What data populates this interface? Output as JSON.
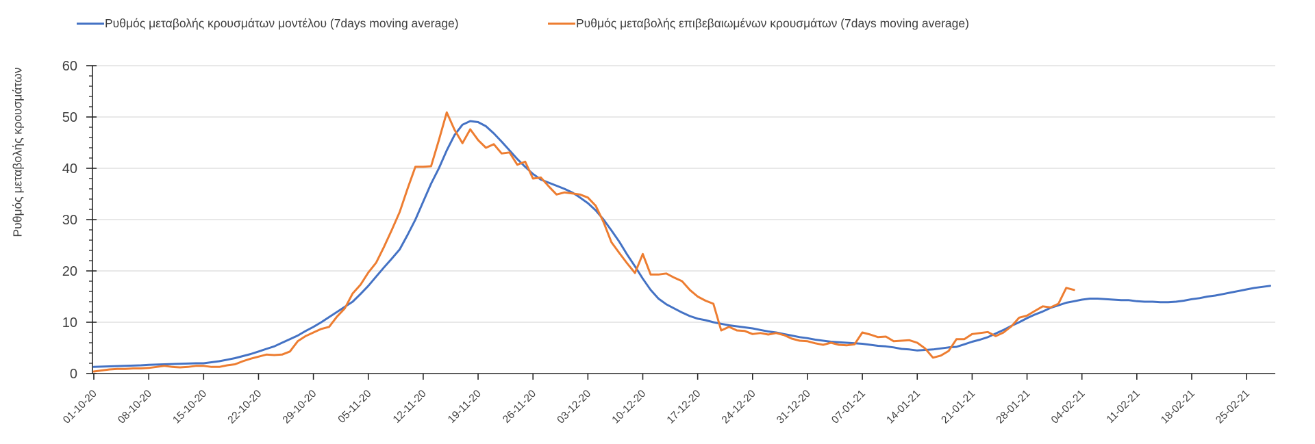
{
  "legend": {
    "items": [
      {
        "label": "Ρυθμός μεταβολής κρουσμάτων μοντέλου (7days moving average)",
        "color": "#4472C4"
      },
      {
        "label": "Ρυθμός μεταβολής επιβεβαιωμένων κρουσμάτων (7days moving average)",
        "color": "#ED7D31"
      }
    ]
  },
  "colors": {
    "series_model": "#4472C4",
    "series_confirmed": "#ED7D31",
    "gridline": "#D9D9D9",
    "axis": "#262626",
    "tick_label": "#404040"
  },
  "chart_data": {
    "type": "line",
    "title": "",
    "xlabel": "",
    "ylabel": "Ρυθμός μεταβολής κρουσμάτων",
    "ylim": [
      0,
      60
    ],
    "y_ticks": [
      0,
      10,
      20,
      30,
      40,
      50,
      60
    ],
    "y_minor_tick_step": 2,
    "grid": "horizontal",
    "legend_position": "top",
    "x_tick_labels": [
      "01-10-20",
      "08-10-20",
      "15-10-20",
      "22-10-20",
      "29-10-20",
      "05-11-20",
      "12-11-20",
      "19-11-20",
      "26-11-20",
      "03-12-20",
      "10-12-20",
      "17-12-20",
      "24-12-20",
      "31-12-20",
      "07-01-21",
      "14-01-21",
      "21-01-21",
      "28-01-21",
      "04-02-21",
      "11-02-21",
      "18-02-21",
      "25-02-21"
    ],
    "x_tick_interval_days": 7,
    "x_start_date": "01-10-20",
    "series": [
      {
        "name": "Ρυθμός μεταβολής κρουσμάτων μοντέλου (7days moving average)",
        "color": "#4472C4",
        "step_days": 1,
        "values": [
          1.3,
          1.35,
          1.4,
          1.45,
          1.5,
          1.55,
          1.6,
          1.7,
          1.75,
          1.8,
          1.85,
          1.9,
          1.95,
          2.0,
          2.0,
          2.2,
          2.4,
          2.7,
          3.0,
          3.4,
          3.8,
          4.3,
          4.8,
          5.3,
          6.0,
          6.7,
          7.4,
          8.3,
          9.1,
          10.0,
          11.0,
          12.0,
          13.0,
          14.0,
          15.5,
          17.1,
          18.9,
          20.7,
          22.4,
          24.2,
          27.0,
          30.0,
          33.5,
          37.0,
          40.0,
          43.5,
          46.5,
          48.5,
          49.2,
          49.0,
          48.2,
          46.8,
          45.2,
          43.5,
          41.8,
          40.3,
          38.9,
          37.8,
          37.2,
          36.6,
          36.0,
          35.3,
          34.3,
          33.2,
          31.8,
          30.0,
          27.9,
          25.7,
          23.2,
          20.9,
          18.5,
          16.3,
          14.6,
          13.5,
          12.7,
          11.9,
          11.2,
          10.7,
          10.4,
          10.0,
          9.7,
          9.4,
          9.2,
          9.0,
          8.8,
          8.5,
          8.2,
          8.0,
          7.7,
          7.4,
          7.1,
          6.9,
          6.6,
          6.4,
          6.2,
          6.1,
          6.0,
          5.9,
          5.8,
          5.6,
          5.4,
          5.3,
          5.1,
          4.8,
          4.7,
          4.5,
          4.6,
          4.7,
          4.9,
          5.1,
          5.2,
          5.7,
          6.2,
          6.6,
          7.1,
          7.8,
          8.5,
          9.3,
          10.0,
          10.8,
          11.5,
          12.1,
          12.8,
          13.3,
          13.8,
          14.1,
          14.4,
          14.6,
          14.6,
          14.5,
          14.4,
          14.3,
          14.3,
          14.1,
          14.0,
          14.0,
          13.9,
          13.9,
          14.0,
          14.2,
          14.5,
          14.7,
          15.0,
          15.2,
          15.5,
          15.8,
          16.1,
          16.4,
          16.7,
          16.9,
          17.1
        ]
      },
      {
        "name": "Ρυθμός μεταβολής επιβεβαιωμένων κρουσμάτων (7days moving average)",
        "color": "#ED7D31",
        "step_days": 1,
        "values": [
          0.4,
          0.6,
          0.8,
          0.9,
          0.9,
          1.0,
          1.0,
          1.1,
          1.3,
          1.5,
          1.3,
          1.2,
          1.3,
          1.5,
          1.5,
          1.3,
          1.3,
          1.6,
          1.8,
          2.4,
          2.9,
          3.3,
          3.7,
          3.6,
          3.7,
          4.3,
          6.3,
          7.3,
          8.0,
          8.7,
          9.1,
          11.1,
          12.7,
          15.6,
          17.3,
          19.7,
          21.6,
          24.7,
          28.0,
          31.5,
          36.0,
          40.3,
          40.3,
          40.4,
          45.5,
          50.9,
          47.5,
          44.9,
          47.6,
          45.5,
          44.0,
          44.7,
          42.9,
          43.1,
          40.7,
          41.3,
          38.0,
          38.2,
          36.5,
          34.9,
          35.3,
          35.1,
          34.9,
          34.3,
          32.7,
          29.5,
          25.6,
          23.5,
          21.5,
          19.6,
          23.3,
          19.3,
          19.3,
          19.5,
          18.7,
          18.0,
          16.3,
          15.0,
          14.2,
          13.6,
          8.4,
          9.1,
          8.4,
          8.3,
          7.7,
          7.9,
          7.6,
          7.9,
          7.5,
          6.8,
          6.4,
          6.3,
          5.9,
          5.6,
          6.0,
          5.6,
          5.5,
          5.7,
          8.0,
          7.6,
          7.1,
          7.2,
          6.3,
          6.4,
          6.5,
          6.0,
          4.9,
          3.1,
          3.5,
          4.4,
          6.7,
          6.7,
          7.7,
          7.9,
          8.1,
          7.3,
          8.0,
          9.2,
          10.9,
          11.3,
          12.2,
          13.1,
          12.9,
          13.6,
          16.7,
          16.3
        ]
      }
    ]
  }
}
